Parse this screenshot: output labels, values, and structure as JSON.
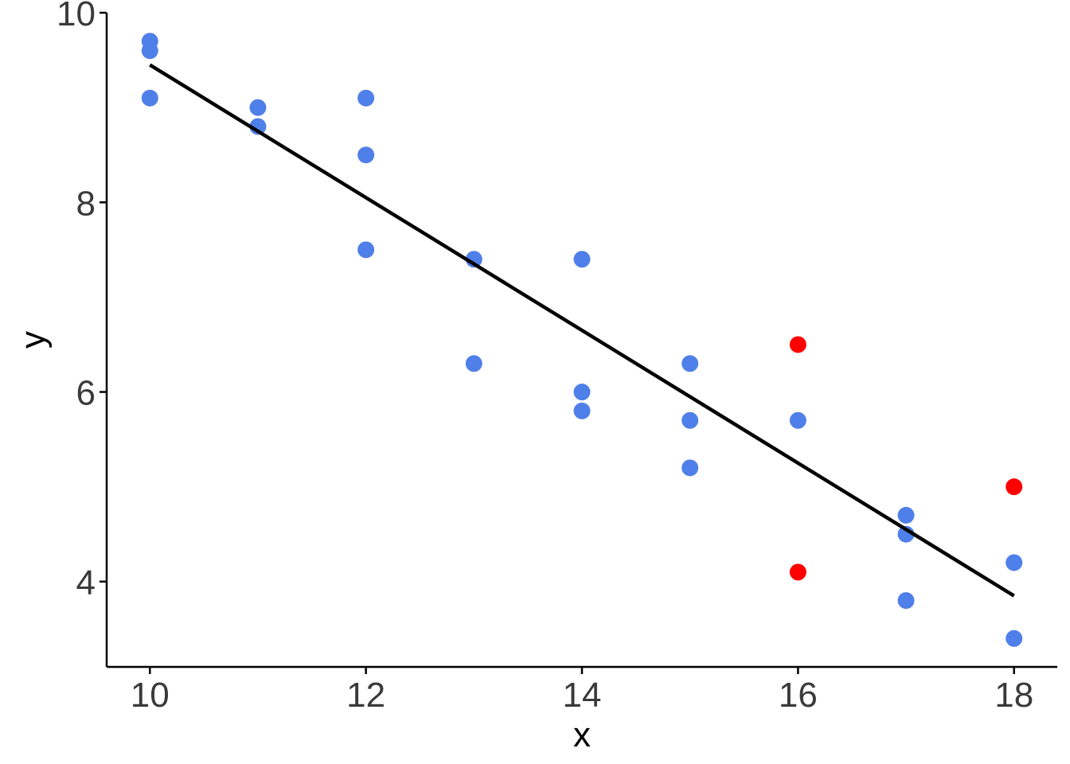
{
  "chart_data": {
    "type": "scatter",
    "title": "",
    "xlabel": "x",
    "ylabel": "y",
    "xlim": [
      9.6,
      18.4
    ],
    "ylim": [
      3.1,
      10.0
    ],
    "x_ticks": [
      10,
      12,
      14,
      16,
      18
    ],
    "x_tick_labels": [
      "10",
      "12",
      "14",
      "16",
      "18"
    ],
    "y_ticks": [
      4,
      6,
      8,
      10
    ],
    "y_tick_labels": [
      "4",
      "6",
      "8",
      "10"
    ],
    "grid": false,
    "legend": "none",
    "colors": {
      "points": "#4f7fe8",
      "highlight": "#ff0000",
      "fit_line": "#000000"
    },
    "series": [
      {
        "color": "#4f7fe8",
        "points": [
          [
            10,
            9.7
          ],
          [
            10,
            9.6
          ],
          [
            10,
            9.1
          ],
          [
            11,
            9.0
          ],
          [
            11,
            8.8
          ],
          [
            12,
            9.1
          ],
          [
            12,
            8.5
          ],
          [
            12,
            7.5
          ],
          [
            13,
            7.4
          ],
          [
            13,
            6.3
          ],
          [
            14,
            7.4
          ],
          [
            14,
            6.0
          ],
          [
            14,
            5.8
          ],
          [
            15,
            6.3
          ],
          [
            15,
            5.7
          ],
          [
            15,
            5.2
          ],
          [
            16,
            5.7
          ],
          [
            17,
            4.7
          ],
          [
            17,
            4.5
          ],
          [
            17,
            3.8
          ],
          [
            18,
            4.2
          ],
          [
            18,
            3.4
          ]
        ]
      },
      {
        "color": "#ff0000",
        "points": [
          [
            16,
            6.5
          ],
          [
            16,
            4.1
          ],
          [
            18,
            5.0
          ]
        ]
      }
    ],
    "fit_line": {
      "x": [
        10,
        18
      ],
      "y": [
        9.45,
        3.85
      ]
    }
  }
}
